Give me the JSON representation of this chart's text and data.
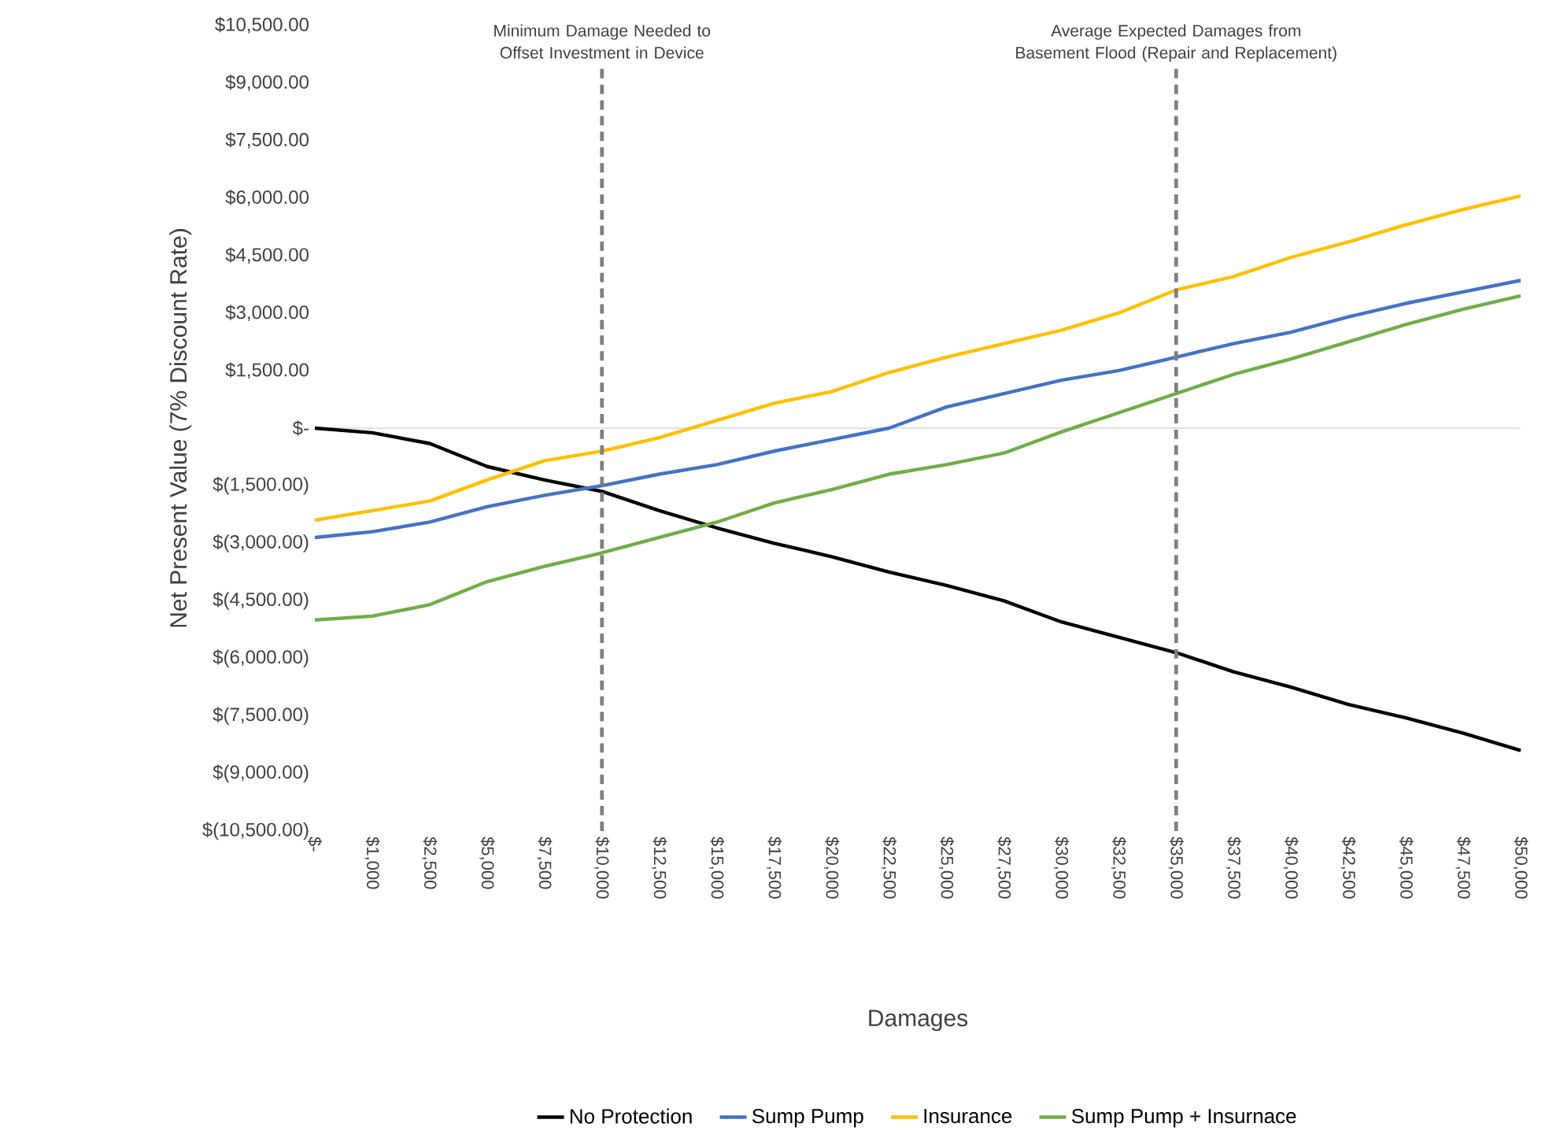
{
  "chart_data": {
    "type": "line",
    "xlabel": "Damages",
    "ylabel": "Net Present Value (7% Discount Rate)",
    "categories": [
      "$-",
      "$1,000",
      "$2,500",
      "$5,000",
      "$7,500",
      "$10,000",
      "$12,500",
      "$15,000",
      "$17,500",
      "$20,000",
      "$22,500",
      "$25,000",
      "$27,500",
      "$30,000",
      "$32,500",
      "$35,000",
      "$37,500",
      "$40,000",
      "$42,500",
      "$45,000",
      "$47,500",
      "$50,000"
    ],
    "series": [
      {
        "name": "No Protection",
        "color": "#000000",
        "values": [
          0,
          -120,
          -400,
          -1000,
          -1350,
          -1650,
          -2150,
          -2600,
          -3000,
          -3350,
          -3750,
          -4100,
          -4500,
          -5050,
          -5450,
          -5850,
          -6350,
          -6750,
          -7200,
          -7550,
          -7950,
          -8400
        ]
      },
      {
        "name": "Sump Pump",
        "color": "#4472c4",
        "values": [
          -2850,
          -2700,
          -2450,
          -2050,
          -1750,
          -1500,
          -1200,
          -950,
          -600,
          -300,
          0,
          550,
          900,
          1250,
          1500,
          1850,
          2200,
          2500,
          2900,
          3250,
          3550,
          3850
        ]
      },
      {
        "name": "Insurance",
        "color": "#ffc000",
        "values": [
          -2400,
          -2150,
          -1900,
          -1350,
          -850,
          -600,
          -250,
          200,
          650,
          950,
          1450,
          1850,
          2200,
          2550,
          3000,
          3600,
          3950,
          4450,
          4850,
          5300,
          5700,
          6050
        ]
      },
      {
        "name": "Sump Pump + Insurnace",
        "color": "#70ad47",
        "values": [
          -5000,
          -4900,
          -4600,
          -4000,
          -3600,
          -3250,
          -2850,
          -2450,
          -1950,
          -1600,
          -1200,
          -950,
          -650,
          -100,
          400,
          900,
          1400,
          1800,
          2250,
          2700,
          3100,
          3450
        ]
      }
    ],
    "ylim": [
      -10500,
      10500
    ],
    "yticks": [
      {
        "value": -10500,
        "label": "$(10,500.00)"
      },
      {
        "value": -9000,
        "label": "$(9,000.00)"
      },
      {
        "value": -7500,
        "label": "$(7,500.00)"
      },
      {
        "value": -6000,
        "label": "$(6,000.00)"
      },
      {
        "value": -4500,
        "label": "$(4,500.00)"
      },
      {
        "value": -3000,
        "label": "$(3,000.00)"
      },
      {
        "value": -1500,
        "label": "$(1,500.00)"
      },
      {
        "value": 0,
        "label": "$-"
      },
      {
        "value": 1500,
        "label": "$1,500.00"
      },
      {
        "value": 3000,
        "label": "$3,000.00"
      },
      {
        "value": 4500,
        "label": "$4,500.00"
      },
      {
        "value": 6000,
        "label": "$6,000.00"
      },
      {
        "value": 7500,
        "label": "$7,500.00"
      },
      {
        "value": 9000,
        "label": "$9,000.00"
      },
      {
        "value": 10500,
        "label": "$10,500.00"
      }
    ],
    "ref_lines": [
      {
        "axis": "x",
        "value": "$10,000",
        "label": "Minimum Damage Needed to Offset Investment in Device",
        "color": "#7f7f7f",
        "line_style": "dashed"
      },
      {
        "axis": "x",
        "value": "$35,000",
        "label": "Average Expected Damages from Basement Flood (Repair and Replacement)",
        "color": "#7f7f7f",
        "line_style": "dashed"
      }
    ],
    "grid": false,
    "legend": "bottom",
    "marker": "none",
    "line_style": "solid"
  }
}
